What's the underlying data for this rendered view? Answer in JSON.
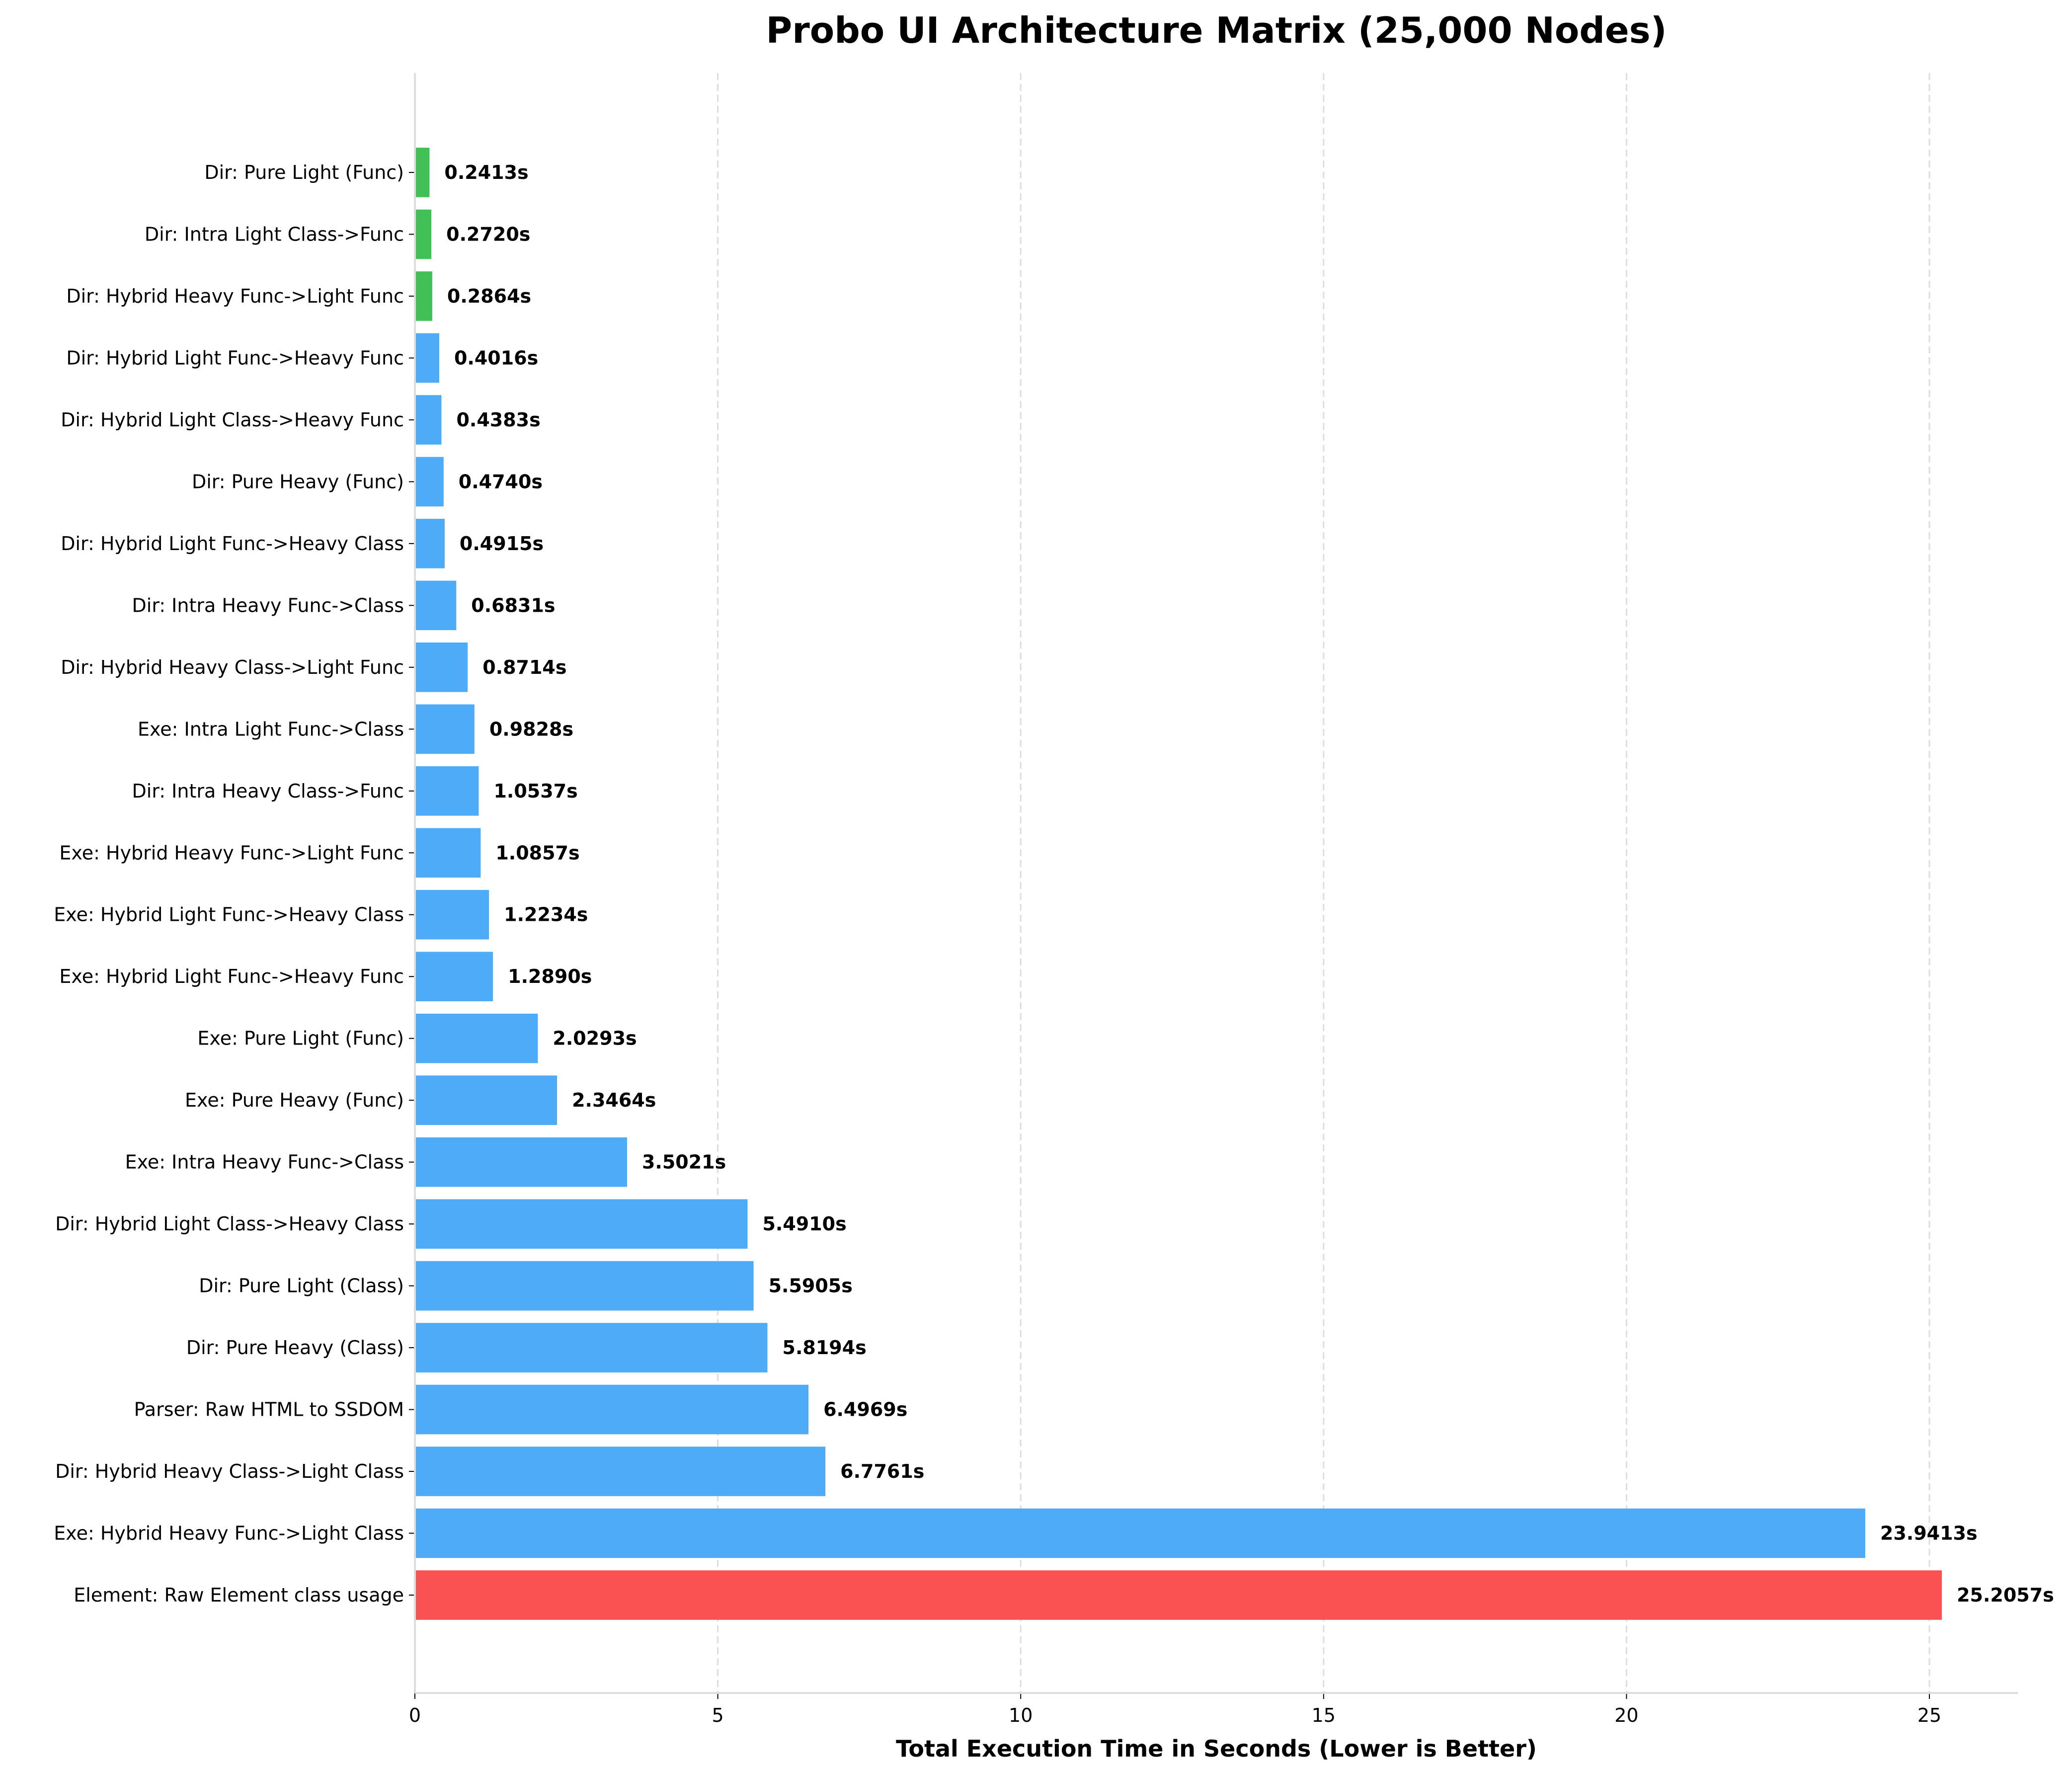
{
  "chart_data": {
    "type": "bar",
    "orientation": "horizontal",
    "title": "Probo UI Architecture Matrix (25,000 Nodes)",
    "xlabel": "Total Execution Time in Seconds (Lower is Better)",
    "ylabel": "",
    "xlim": [
      0,
      26.46
    ],
    "xticks": [
      0,
      5,
      10,
      15,
      20,
      25
    ],
    "grid": "x-dashed",
    "value_suffix": "s",
    "categories": [
      "Dir: Pure Light (Func)",
      "Dir: Intra Light Class->Func",
      "Dir: Hybrid Heavy Func->Light Func",
      "Dir: Hybrid Light Func->Heavy Func",
      "Dir: Hybrid Light Class->Heavy Func",
      "Dir: Pure Heavy (Func)",
      "Dir: Hybrid Light Func->Heavy Class",
      "Dir: Intra Heavy Func->Class",
      "Dir: Hybrid Heavy Class->Light Func",
      "Exe: Intra Light Func->Class",
      "Dir: Intra Heavy Class->Func",
      "Exe: Hybrid Heavy Func->Light Func",
      "Exe: Hybrid Light Func->Heavy Class",
      "Exe: Hybrid Light Func->Heavy Func",
      "Exe: Pure Light (Func)",
      "Exe: Pure Heavy (Func)",
      "Exe: Intra Heavy Func->Class",
      "Dir: Hybrid Light Class->Heavy Class",
      "Dir: Pure Light (Class)",
      "Dir: Pure Heavy (Class)",
      "Parser: Raw HTML to SSDOM",
      "Dir: Hybrid Heavy Class->Light Class",
      "Exe: Hybrid Heavy Func->Light Class",
      "Element: Raw Element class usage"
    ],
    "values": [
      0.2413,
      0.272,
      0.2864,
      0.4016,
      0.4383,
      0.474,
      0.4915,
      0.6831,
      0.8714,
      0.9828,
      1.0537,
      1.0857,
      1.2234,
      1.289,
      2.0293,
      2.3464,
      3.5021,
      5.491,
      5.5905,
      5.8194,
      6.4969,
      6.7761,
      23.9413,
      25.2057
    ],
    "value_labels": [
      "0.2413s",
      "0.2720s",
      "0.2864s",
      "0.4016s",
      "0.4383s",
      "0.4740s",
      "0.4915s",
      "0.6831s",
      "0.8714s",
      "0.9828s",
      "1.0537s",
      "1.0857s",
      "1.2234s",
      "1.2890s",
      "2.0293s",
      "2.3464s",
      "3.5021s",
      "5.4910s",
      "5.5905s",
      "5.8194s",
      "6.4969s",
      "6.7761s",
      "23.9413s",
      "25.2057s"
    ],
    "bar_colors": [
      "#40c057",
      "#40c057",
      "#40c057",
      "#4dabf7",
      "#4dabf7",
      "#4dabf7",
      "#4dabf7",
      "#4dabf7",
      "#4dabf7",
      "#4dabf7",
      "#4dabf7",
      "#4dabf7",
      "#4dabf7",
      "#4dabf7",
      "#4dabf7",
      "#4dabf7",
      "#4dabf7",
      "#4dabf7",
      "#4dabf7",
      "#4dabf7",
      "#4dabf7",
      "#4dabf7",
      "#4dabf7",
      "#fa5252"
    ]
  }
}
